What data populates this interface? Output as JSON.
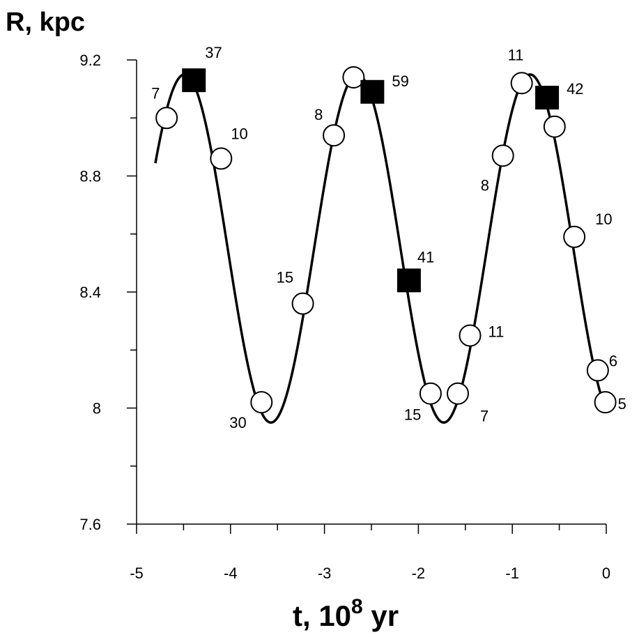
{
  "chart_data": {
    "type": "scatter",
    "ylabel": "R, kpc",
    "xlabel": {
      "prefix": "t, 10",
      "superscript": "8",
      "suffix": " yr"
    },
    "xlim": [
      -5,
      0
    ],
    "ylim": [
      7.6,
      9.2
    ],
    "x_ticks": [
      -5,
      -4,
      -3,
      -2,
      -1,
      0
    ],
    "x_tick_labels": [
      "-5",
      "-4",
      "-3",
      "-2",
      "-1",
      "0"
    ],
    "y_ticks": [
      7.6,
      8.0,
      8.4,
      8.8,
      9.2
    ],
    "y_tick_labels": [
      "7.6",
      "8",
      "8.4",
      "8.8",
      "9.2"
    ],
    "x_minor_ticks": [
      -4.5,
      -3.5,
      -2.5,
      -1.5,
      -0.5
    ],
    "y_minor_ticks": [
      7.8,
      8.2,
      8.6,
      9.0
    ],
    "grid": false,
    "series": [
      {
        "marker": "open-circle",
        "points": [
          {
            "x": -4.68,
            "y": 9.0,
            "label": "7"
          },
          {
            "x": -4.1,
            "y": 8.86,
            "label": "10"
          },
          {
            "x": -3.67,
            "y": 8.02,
            "label": "30"
          },
          {
            "x": -3.23,
            "y": 8.36,
            "label": "15"
          },
          {
            "x": -2.9,
            "y": 8.94,
            "label": "8"
          },
          {
            "x": -2.69,
            "y": 9.14,
            "label": ""
          },
          {
            "x": -1.87,
            "y": 8.05,
            "label": "15"
          },
          {
            "x": -1.58,
            "y": 8.05,
            "label": "7"
          },
          {
            "x": -1.45,
            "y": 8.25,
            "label": "11"
          },
          {
            "x": -1.1,
            "y": 8.87,
            "label": "8"
          },
          {
            "x": -0.9,
            "y": 9.12,
            "label": "11"
          },
          {
            "x": -0.55,
            "y": 8.97,
            "label": ""
          },
          {
            "x": -0.34,
            "y": 8.59,
            "label": "10"
          },
          {
            "x": -0.09,
            "y": 8.13,
            "label": "6"
          },
          {
            "x": -0.01,
            "y": 8.02,
            "label": "5"
          }
        ]
      },
      {
        "marker": "filled-square",
        "points": [
          {
            "x": -4.39,
            "y": 9.13,
            "label": "37"
          },
          {
            "x": -2.49,
            "y": 9.09,
            "label": "59"
          },
          {
            "x": -2.1,
            "y": 8.44,
            "label": "41"
          },
          {
            "x": -0.63,
            "y": 9.07,
            "label": "42"
          }
        ]
      },
      {
        "marker": "line",
        "curve": {
          "x_start": -4.8,
          "x_end": 0.0,
          "offset": 8.55,
          "amplitude": 0.6,
          "period": 1.84,
          "phase_peak_x": -0.81
        }
      }
    ]
  }
}
